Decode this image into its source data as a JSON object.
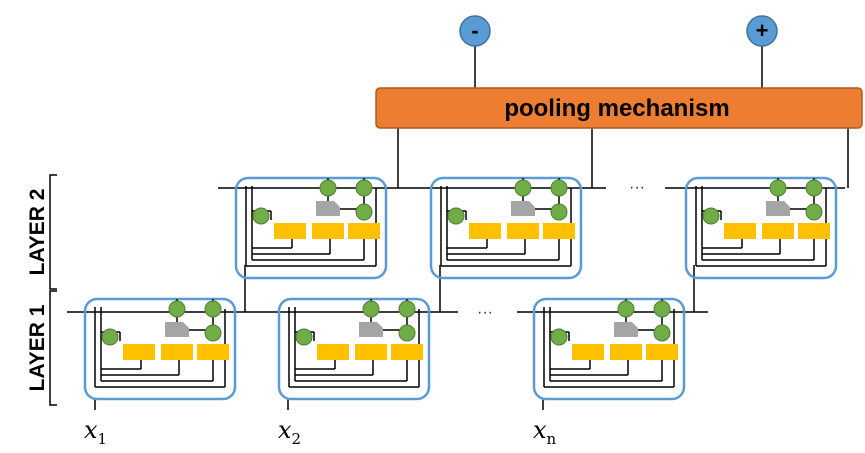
{
  "pooling": {
    "label": "pooling mechanism"
  },
  "outputs": {
    "negative": "-",
    "positive": "+"
  },
  "layers": {
    "layer1": "LAYER 1",
    "layer2": "LAYER 2"
  },
  "inputs": [
    {
      "base": "x",
      "sub": "1"
    },
    {
      "base": "x",
      "sub": "2"
    },
    {
      "base": "x",
      "sub": "n"
    }
  ],
  "ellipses": {
    "layer1": "···",
    "layer2": "···"
  },
  "colors": {
    "pooling_fill": "#ED7D31",
    "pooling_stroke": "#AE5A21",
    "output_node": "#5B9BD5",
    "cell_border": "#5B9BD5",
    "gate": "#70AD47",
    "gate_stroke": "#507E32",
    "activation": "#FFC000",
    "memory": "#A5A5A5"
  }
}
